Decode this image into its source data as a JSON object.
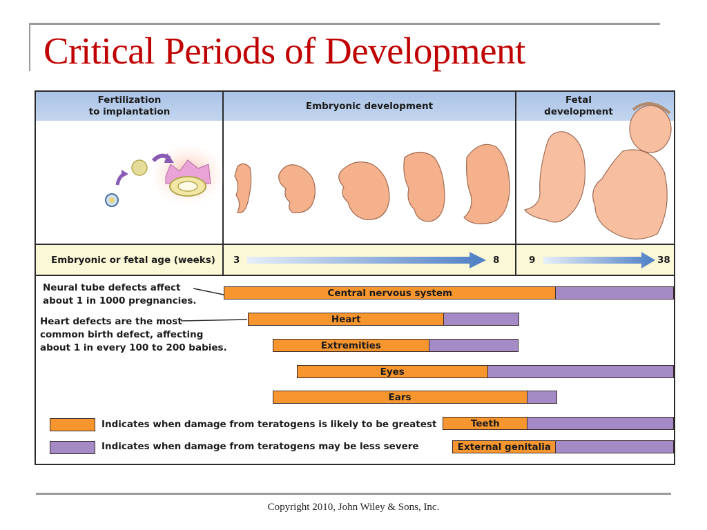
{
  "slide": {
    "title": "Critical Periods of Development",
    "copyright": "Copyright 2010, John Wiley & Sons, Inc."
  },
  "chart_data": {
    "type": "timeline",
    "title": "Critical Periods of Development",
    "stage_headers": [
      {
        "label_line1": "Fertilization",
        "label_line2": "to implantation"
      },
      {
        "label_line1": "Embryonic development",
        "label_line2": ""
      },
      {
        "label_line1": "Fetal",
        "label_line2": "development"
      }
    ],
    "axis": {
      "label": "Embryonic or fetal age (weeks)",
      "embryonic_range": [
        3,
        8
      ],
      "fetal_range": [
        9,
        38
      ],
      "tick_labels": [
        "3",
        "8",
        "9",
        "38"
      ]
    },
    "annotations": [
      {
        "lines": [
          "Neural tube defects affect",
          "about 1 in 1000 pregnancies."
        ],
        "points_to": "Central nervous system"
      },
      {
        "lines": [
          "Heart defects are the most",
          "common birth defect, affecting",
          "about 1 in every 100 to 200 babies."
        ],
        "points_to": "Heart"
      }
    ],
    "series": [
      {
        "name": "Central nervous system",
        "start_week": 3.0,
        "severe_end_week": 16.4,
        "end_week": 38
      },
      {
        "name": "Heart",
        "start_week": 3.5,
        "severe_end_week": 7.5,
        "end_week": 9.6
      },
      {
        "name": "Extremities",
        "start_week": 4.0,
        "severe_end_week": 7.2,
        "end_week": 9.5
      },
      {
        "name": "Eyes",
        "start_week": 4.5,
        "severe_end_week": 8.4,
        "end_week": 38
      },
      {
        "name": "Ears",
        "start_week": 4.0,
        "severe_end_week": 10.9,
        "end_week": 16.8
      },
      {
        "name": "Teeth",
        "start_week": 7.5,
        "severe_end_week": 11.0,
        "end_week": 38
      },
      {
        "name": "External genitalia",
        "start_week": 7.7,
        "severe_end_week": 16.4,
        "end_week": 38
      }
    ],
    "legend": [
      {
        "label": "Indicates when damage from teratogens is likely to be greatest",
        "color": "#f7962f"
      },
      {
        "label": "Indicates when damage from teratogens may be less severe",
        "color": "#a58bc6"
      }
    ],
    "colors": {
      "greatest": "#f7962f",
      "less_severe": "#a58bc6",
      "header_band": "#b8cdeb",
      "age_band": "#fbf8d8",
      "title": "#c00000"
    }
  }
}
